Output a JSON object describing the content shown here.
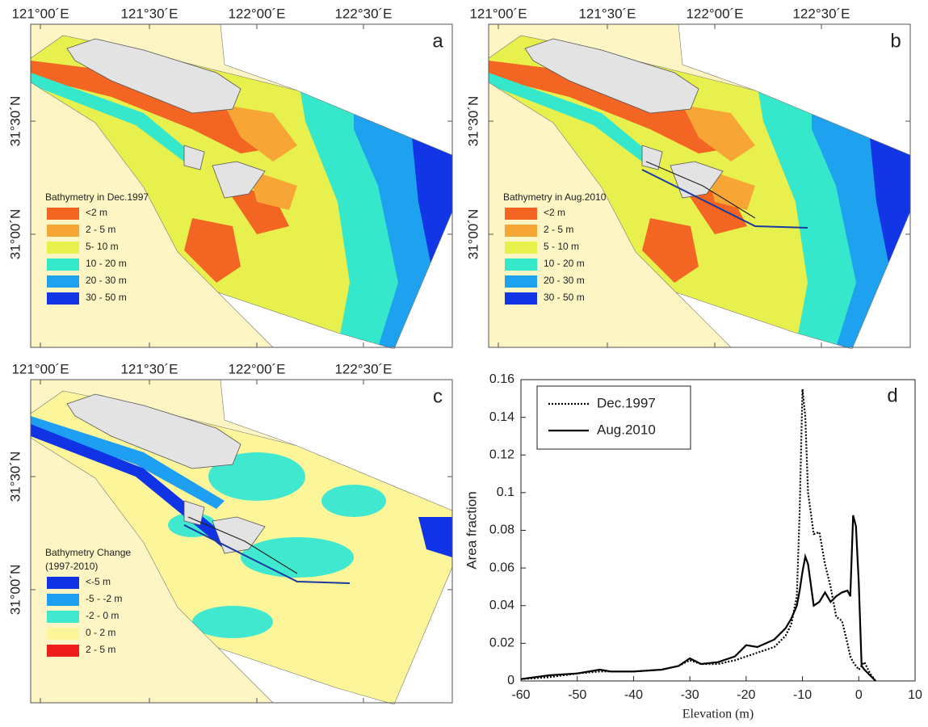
{
  "panels": [
    {
      "letter": "a",
      "lon_labels": [
        "121°00´E",
        "121°30´E",
        "122°00´E",
        "122°30´E"
      ],
      "lat_labels": [
        "31°30´N",
        "31°00´N"
      ],
      "legend": {
        "title_lines": [
          "Bathymetry in Dec.1997"
        ],
        "items": [
          {
            "label": "<2 m",
            "color": "#f26522"
          },
          {
            "label": "2 - 5 m",
            "color": "#f7a534"
          },
          {
            "label": "5- 10 m",
            "color": "#e8f04e"
          },
          {
            "label": "10 - 20 m",
            "color": "#35e8cc"
          },
          {
            "label": "20 - 30 m",
            "color": "#1ea2f0"
          },
          {
            "label": "30 - 50 m",
            "color": "#1236e6"
          }
        ]
      }
    },
    {
      "letter": "b",
      "lon_labels": [
        "121°00´E",
        "121°30´E",
        "122°00´E",
        "122°30´E"
      ],
      "lat_labels": [
        "31°30´N",
        "31°00´N"
      ],
      "legend": {
        "title_lines": [
          "Bathymetry in Aug.2010"
        ],
        "items": [
          {
            "label": "<2 m",
            "color": "#f26522"
          },
          {
            "label": "2 - 5 m",
            "color": "#f7a534"
          },
          {
            "label": "5 - 10 m",
            "color": "#e8f04e"
          },
          {
            "label": "10 - 20 m",
            "color": "#35e8cc"
          },
          {
            "label": "20 - 30 m",
            "color": "#1ea2f0"
          },
          {
            "label": "30 - 50 m",
            "color": "#1236e6"
          }
        ]
      }
    },
    {
      "letter": "c",
      "lon_labels": [
        "121°00´E",
        "121°30´E",
        "122°00´E",
        "122°30´E"
      ],
      "lat_labels": [
        "31°30´N",
        "31°00´N"
      ],
      "legend": {
        "title_lines": [
          "Bathymetry Change",
          "(1997-2010)"
        ],
        "items": [
          {
            "label": "<-5 m",
            "color": "#1033e6"
          },
          {
            "label": "-5 - -2 m",
            "color": "#1e9ff2"
          },
          {
            "label": "-2 - 0 m",
            "color": "#40e8d0"
          },
          {
            "label": "0 - 2 m",
            "color": "#fdf59a"
          },
          {
            "label": "2 - 5 m",
            "color": "#ef1c1c"
          }
        ]
      }
    }
  ],
  "chart_data": {
    "type": "line",
    "letter": "d",
    "xlabel": "Elevation (m)",
    "ylabel": "Area fraction",
    "xlim": [
      -60,
      10
    ],
    "ylim": [
      0,
      0.16
    ],
    "xticks": [
      -60,
      -50,
      -40,
      -30,
      -20,
      -10,
      0,
      10
    ],
    "yticks": [
      0,
      0.02,
      0.04,
      0.06,
      0.08,
      0.1,
      0.12,
      0.14,
      0.16
    ],
    "legend": "upper left",
    "x": [
      -60,
      -55,
      -50,
      -46,
      -44,
      -40,
      -35,
      -32,
      -30,
      -28,
      -25,
      -22,
      -20,
      -18,
      -15,
      -13,
      -12,
      -11,
      -10.5,
      -10,
      -9.5,
      -9,
      -8,
      -7,
      -6,
      -5,
      -4,
      -3,
      -2,
      -1.5,
      -1,
      -0.5,
      0,
      0.5,
      1,
      2,
      3
    ],
    "series": [
      {
        "name": "Dec.1997",
        "color": "#000000",
        "dash": "dotted",
        "values": [
          0.001,
          0.002,
          0.004,
          0.005,
          0.005,
          0.005,
          0.006,
          0.008,
          0.011,
          0.009,
          0.009,
          0.011,
          0.013,
          0.015,
          0.018,
          0.024,
          0.03,
          0.045,
          0.09,
          0.155,
          0.14,
          0.1,
          0.078,
          0.079,
          0.062,
          0.05,
          0.034,
          0.032,
          0.02,
          0.013,
          0.01,
          0.008,
          0.006,
          0.008,
          0.01,
          0.004,
          0
        ]
      },
      {
        "name": "Aug.2010",
        "color": "#000000",
        "dash": "solid",
        "values": [
          0.001,
          0.003,
          0.004,
          0.006,
          0.005,
          0.005,
          0.006,
          0.008,
          0.012,
          0.009,
          0.01,
          0.013,
          0.019,
          0.018,
          0.022,
          0.028,
          0.033,
          0.04,
          0.048,
          0.058,
          0.066,
          0.062,
          0.04,
          0.042,
          0.047,
          0.042,
          0.045,
          0.047,
          0.048,
          0.045,
          0.088,
          0.082,
          0.052,
          0.008,
          0.006,
          0.003,
          0
        ]
      }
    ]
  }
}
